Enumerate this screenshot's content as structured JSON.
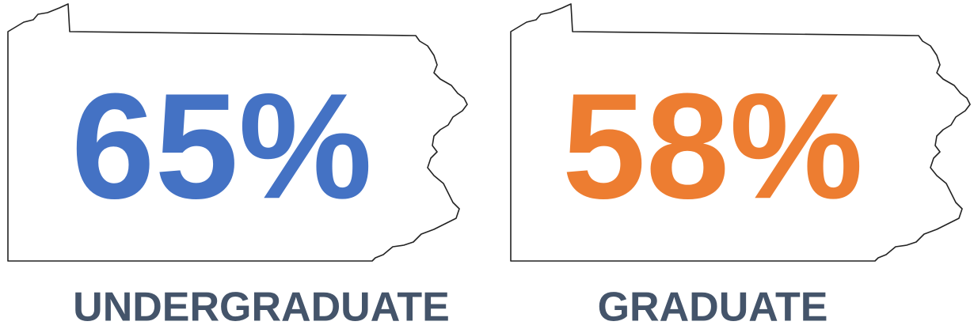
{
  "items": [
    {
      "value": "65%",
      "label": "UNDERGRADUATE",
      "color": "#4472c4"
    },
    {
      "value": "58%",
      "label": "GRADUATE",
      "color": "#ed7d31"
    }
  ]
}
